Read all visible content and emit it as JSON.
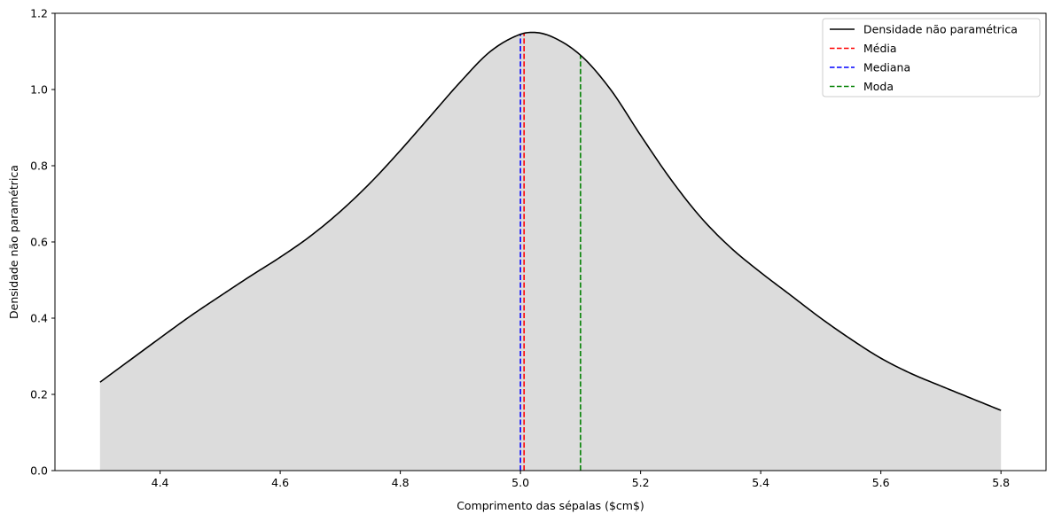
{
  "chart_data": {
    "type": "line",
    "xlabel": "Comprimento das sépalas ($cm$)",
    "ylabel": "Densidade não paramétrica",
    "xlim": [
      4.225,
      5.875
    ],
    "ylim": [
      0,
      1.2
    ],
    "x_ticks": [
      "4.4",
      "4.6",
      "4.8",
      "5.0",
      "5.2",
      "5.4",
      "5.6",
      "5.8"
    ],
    "y_ticks": [
      "0.0",
      "0.2",
      "0.4",
      "0.6",
      "0.8",
      "1.0",
      "1.2"
    ],
    "grid": false,
    "legend_position": "upper right",
    "fill_color": "#dcdcdc",
    "series": [
      {
        "name": "Densidade não paramétrica",
        "color": "#000000",
        "style": "solid",
        "x": [
          4.3,
          4.35,
          4.4,
          4.45,
          4.5,
          4.55,
          4.6,
          4.65,
          4.7,
          4.75,
          4.8,
          4.85,
          4.9,
          4.95,
          5.0,
          5.02,
          5.05,
          5.1,
          5.15,
          5.2,
          5.25,
          5.3,
          5.35,
          5.4,
          5.45,
          5.5,
          5.55,
          5.6,
          5.65,
          5.7,
          5.75,
          5.8
        ],
        "y": [
          0.232,
          0.29,
          0.348,
          0.405,
          0.458,
          0.51,
          0.56,
          0.615,
          0.68,
          0.755,
          0.84,
          0.93,
          1.02,
          1.1,
          1.145,
          1.15,
          1.14,
          1.09,
          1.0,
          0.88,
          0.765,
          0.665,
          0.585,
          0.52,
          0.46,
          0.4,
          0.345,
          0.295,
          0.255,
          0.222,
          0.19,
          0.158
        ]
      }
    ],
    "vlines": [
      {
        "name": "Média",
        "x": 5.006,
        "color": "#ff0000"
      },
      {
        "name": "Mediana",
        "x": 5.0,
        "color": "#0000ff"
      },
      {
        "name": "Moda",
        "x": 5.1,
        "color": "#008000"
      }
    ]
  }
}
